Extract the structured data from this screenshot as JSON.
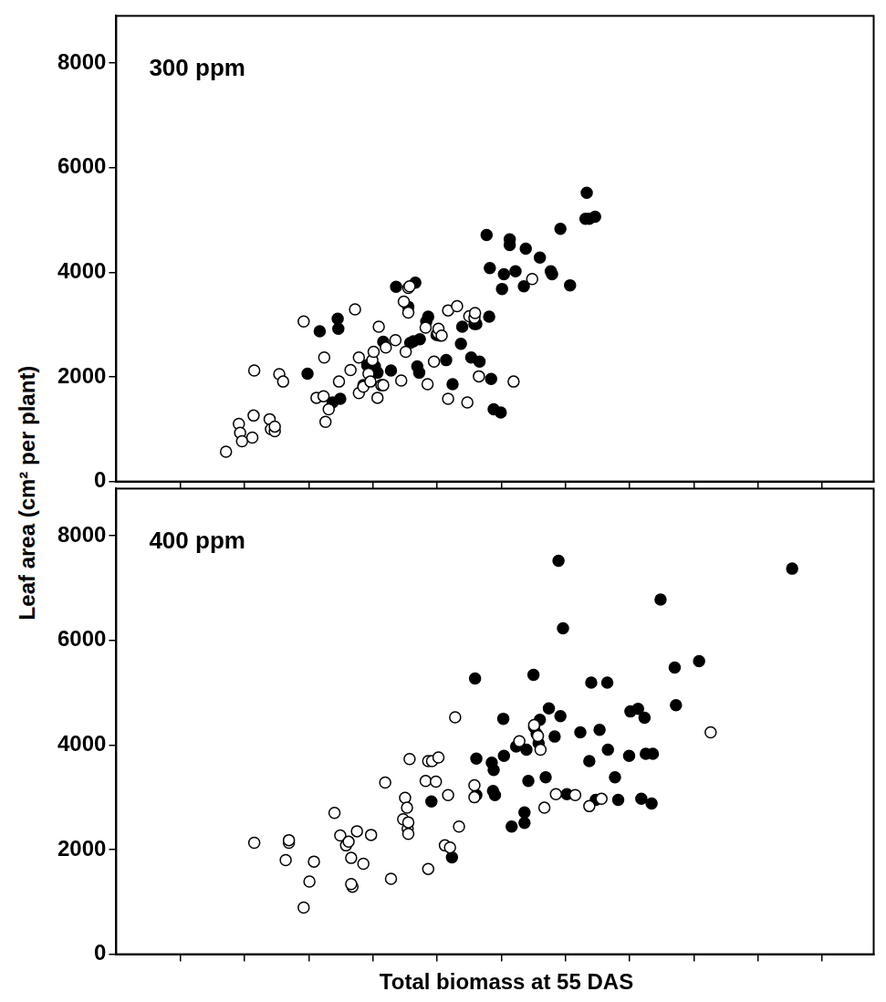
{
  "chart_data": [
    {
      "type": "scatter",
      "annotation": "300 ppm",
      "y_label": "Leaf area (cm² per plant)",
      "xlim": [
        0,
        11.8
      ],
      "xticks": [
        1,
        2,
        3,
        4,
        5,
        6,
        7,
        8,
        9,
        10,
        11
      ],
      "ylim": [
        0,
        8900
      ],
      "yticks": [
        0,
        2000,
        4000,
        6000,
        8000
      ],
      "grid": false,
      "tick_labels": "y",
      "series": [
        {
          "marker": "open",
          "color": "#000000",
          "x": [
            1.71,
            1.91,
            1.93,
            1.96,
            2.12,
            2.14,
            2.15,
            2.39,
            2.41,
            2.47,
            2.47,
            2.54,
            2.6,
            2.92,
            3.12,
            3.23,
            3.24,
            3.26,
            3.31,
            3.47,
            3.65,
            3.72,
            3.78,
            3.78,
            3.85,
            3.93,
            3.96,
            3.99,
            4.01,
            4.07,
            4.09,
            4.13,
            4.16,
            4.2,
            4.35,
            4.44,
            4.48,
            4.51,
            4.55,
            4.55,
            4.57,
            4.82,
            4.85,
            4.95,
            5.01,
            5.02,
            5.07,
            5.17,
            5.17,
            5.31,
            5.47,
            5.5,
            5.58,
            5.59,
            5.65,
            6.19,
            6.48
          ],
          "values": [
            570,
            1100,
            930,
            770,
            840,
            1260,
            2120,
            1190,
            1000,
            960,
            1050,
            2050,
            1910,
            3060,
            1600,
            1630,
            2370,
            1140,
            1380,
            1910,
            2130,
            3290,
            1690,
            2370,
            1810,
            2060,
            1910,
            2320,
            2480,
            1600,
            2960,
            1840,
            1840,
            2560,
            2700,
            1930,
            3440,
            2480,
            3230,
            3700,
            3730,
            2940,
            1860,
            2290,
            2840,
            2920,
            2790,
            3270,
            1580,
            3350,
            1510,
            3160,
            3130,
            3220,
            2010,
            1910,
            3870
          ]
        },
        {
          "marker": "filled",
          "color": "#000000",
          "x": [
            2.98,
            3.17,
            3.37,
            3.45,
            3.46,
            3.49,
            3.85,
            3.91,
            4.03,
            4.07,
            4.16,
            4.28,
            4.36,
            4.55,
            4.58,
            4.63,
            4.66,
            4.69,
            4.72,
            4.73,
            4.83,
            4.86,
            4.99,
            5.04,
            5.14,
            5.24,
            5.37,
            5.39,
            5.53,
            5.58,
            5.61,
            5.66,
            5.77,
            5.81,
            5.82,
            5.84,
            5.88,
            5.99,
            6.01,
            6.04,
            6.13,
            6.13,
            6.22,
            6.35,
            6.38,
            6.6,
            6.77,
            6.79,
            6.92,
            7.07,
            7.31,
            7.33,
            7.37,
            7.46
          ],
          "values": [
            2060,
            2870,
            1510,
            3110,
            2920,
            1580,
            1840,
            2220,
            2200,
            2080,
            2670,
            2120,
            3720,
            3340,
            2650,
            2680,
            3800,
            2200,
            2080,
            2720,
            3060,
            3150,
            2800,
            2790,
            2320,
            1860,
            2630,
            2960,
            2370,
            3010,
            3010,
            2290,
            4710,
            3150,
            4080,
            1960,
            1380,
            1320,
            3680,
            3960,
            4630,
            4520,
            4020,
            3730,
            4450,
            4280,
            4020,
            3960,
            4830,
            3750,
            5020,
            5520,
            5020,
            5060
          ]
        }
      ]
    },
    {
      "type": "scatter",
      "annotation": "400 ppm",
      "x_label": "Total biomass at 55 DAS",
      "xlim": [
        0,
        11.8
      ],
      "xticks": [
        1,
        2,
        3,
        4,
        5,
        6,
        7,
        8,
        9,
        10,
        11
      ],
      "ylim": [
        0,
        8900
      ],
      "yticks": [
        0,
        2000,
        4000,
        6000,
        8000
      ],
      "grid": false,
      "tick_labels": "y",
      "series": [
        {
          "marker": "open",
          "color": "#000000",
          "x": [
            2.15,
            2.69,
            2.69,
            2.64,
            2.92,
            3.01,
            3.08,
            3.4,
            3.49,
            3.58,
            3.62,
            3.66,
            3.68,
            3.66,
            3.75,
            3.85,
            3.97,
            4.19,
            4.28,
            4.47,
            4.5,
            4.53,
            4.54,
            4.55,
            4.55,
            4.57,
            4.82,
            4.86,
            4.86,
            4.92,
            4.98,
            5.02,
            5.12,
            5.17,
            5.2,
            5.28,
            5.34,
            5.58,
            5.58,
            6.28,
            6.51,
            6.57,
            6.61,
            6.67,
            6.85,
            7.15,
            7.37,
            7.56,
            9.26
          ],
          "values": [
            2130,
            2130,
            2180,
            1800,
            890,
            1390,
            1770,
            2700,
            2270,
            2080,
            2150,
            1840,
            1290,
            1340,
            2350,
            1730,
            2280,
            3280,
            1440,
            2580,
            2990,
            2800,
            2400,
            2300,
            2520,
            3730,
            3310,
            1630,
            3690,
            3690,
            3300,
            3760,
            2080,
            3040,
            2040,
            4530,
            2440,
            3230,
            3000,
            4070,
            4380,
            4170,
            3910,
            2800,
            3060,
            3040,
            2830,
            2970,
            4240
          ]
        },
        {
          "marker": "filled",
          "color": "#000000",
          "x": [
            4.91,
            5.23,
            5.59,
            5.61,
            5.61,
            5.85,
            5.87,
            5.88,
            5.9,
            6.03,
            6.04,
            6.16,
            6.23,
            6.36,
            6.36,
            6.39,
            6.42,
            6.5,
            6.51,
            6.55,
            6.58,
            6.6,
            6.69,
            6.74,
            6.83,
            6.89,
            6.92,
            6.96,
            7.02,
            7.23,
            7.37,
            7.4,
            7.47,
            7.53,
            7.65,
            7.66,
            7.77,
            7.82,
            7.99,
            8.01,
            8.13,
            8.18,
            8.23,
            8.25,
            8.34,
            8.36,
            8.48,
            8.7,
            8.72,
            9.08,
            10.53
          ],
          "values": [
            2920,
            1850,
            5270,
            3740,
            3040,
            3660,
            3120,
            3520,
            3040,
            4500,
            3790,
            2440,
            3970,
            2710,
            2510,
            3910,
            3310,
            5340,
            4340,
            4210,
            4030,
            4480,
            3380,
            4700,
            4160,
            7520,
            4550,
            6230,
            3060,
            4240,
            3690,
            5190,
            2950,
            4290,
            5190,
            3910,
            3380,
            2950,
            3790,
            4640,
            4690,
            2970,
            4520,
            3830,
            2880,
            3830,
            6780,
            5480,
            4760,
            5600,
            7370
          ]
        }
      ]
    }
  ]
}
